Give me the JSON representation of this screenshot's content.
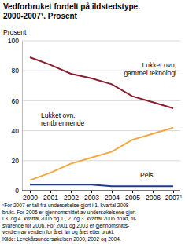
{
  "chart_data": {
    "type": "line",
    "title": [
      "Vedforbruket fordelt på ildstedstype.",
      "2000-2007¹. Prosent"
    ],
    "y_label": "Prosent",
    "categories": [
      "2000",
      "2001",
      "2002",
      "2003",
      "2004",
      "2005",
      "2006",
      "2007¹"
    ],
    "series": [
      {
        "name": "Lukket ovn, gammel teknologi",
        "color": "#8c1d2f",
        "values": [
          89,
          84,
          78,
          75,
          71,
          63,
          59,
          55
        ]
      },
      {
        "name": "Lukket ovn, rentbrennende",
        "color": "#f5a742",
        "values": [
          7,
          12,
          18,
          22,
          26,
          34,
          38,
          42
        ]
      },
      {
        "name": "Peis",
        "color": "#1f3a93",
        "values": [
          4,
          4,
          4,
          4,
          3,
          3,
          3,
          3
        ]
      }
    ],
    "ylim": [
      0,
      100
    ],
    "yticks": [
      0,
      20,
      40,
      60,
      80,
      100
    ],
    "grid": true,
    "footnote": [
      "¹For 2007 er tall fra undersøkelse gjort i 1. kvartal 2008",
      "brukt. For 2005 er gjennomsnittet av undersøkelsene gjort",
      "i 3. og 4. kvartal 2005 og 1., 2. og 3. kvartal 2006 brukt, til-",
      "svarende for 2006. For 2001 og 2003 er gjennomsnitts-",
      "verdien av verdien for året før og året etter brukt.",
      "Kilde: Levekårsundersøkelsen 2000, 2002 og 2004."
    ]
  }
}
